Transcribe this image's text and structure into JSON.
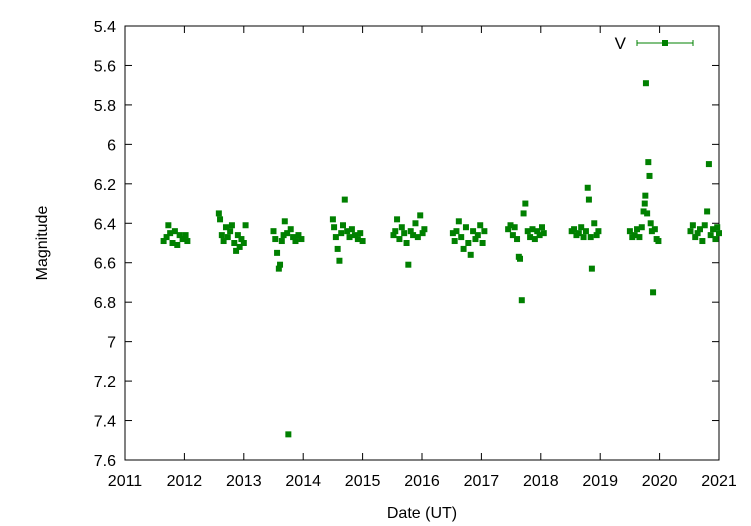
{
  "chart_data": {
    "type": "scatter",
    "title": "",
    "xlabel": "Date (UT)",
    "ylabel": "Magnitude",
    "xlim": [
      2011,
      2021
    ],
    "ylim": [
      7.6,
      5.4
    ],
    "y_inverted": true,
    "grid": false,
    "legend_position": "top-right",
    "x_ticks": [
      "2011",
      "2012",
      "2013",
      "2014",
      "2015",
      "2016",
      "2017",
      "2018",
      "2019",
      "2020",
      "2021"
    ],
    "y_ticks": [
      "5.4",
      "5.6",
      "5.8",
      "6",
      "6.2",
      "6.4",
      "6.6",
      "6.8",
      "7",
      "7.2",
      "7.4",
      "7.6"
    ],
    "series": [
      {
        "name": "V",
        "color": "#008000",
        "marker": "square",
        "points": [
          [
            2011.65,
            6.49
          ],
          [
            2011.7,
            6.47
          ],
          [
            2011.73,
            6.41
          ],
          [
            2011.76,
            6.45
          ],
          [
            2011.8,
            6.5
          ],
          [
            2011.84,
            6.44
          ],
          [
            2011.88,
            6.51
          ],
          [
            2011.92,
            6.46
          ],
          [
            2011.97,
            6.48
          ],
          [
            2012.02,
            6.46
          ],
          [
            2012.05,
            6.49
          ],
          [
            2012.58,
            6.35
          ],
          [
            2012.6,
            6.38
          ],
          [
            2012.63,
            6.46
          ],
          [
            2012.66,
            6.49
          ],
          [
            2012.7,
            6.42
          ],
          [
            2012.73,
            6.47
          ],
          [
            2012.77,
            6.44
          ],
          [
            2012.8,
            6.41
          ],
          [
            2012.84,
            6.5
          ],
          [
            2012.87,
            6.54
          ],
          [
            2012.9,
            6.46
          ],
          [
            2012.93,
            6.52
          ],
          [
            2012.96,
            6.48
          ],
          [
            2013.0,
            6.5
          ],
          [
            2013.03,
            6.41
          ],
          [
            2013.5,
            6.44
          ],
          [
            2013.53,
            6.48
          ],
          [
            2013.56,
            6.55
          ],
          [
            2013.59,
            6.63
          ],
          [
            2013.61,
            6.61
          ],
          [
            2013.64,
            6.49
          ],
          [
            2013.67,
            6.46
          ],
          [
            2013.69,
            6.39
          ],
          [
            2013.73,
            6.45
          ],
          [
            2013.75,
            7.47
          ],
          [
            2013.79,
            6.43
          ],
          [
            2013.83,
            6.47
          ],
          [
            2013.87,
            6.49
          ],
          [
            2013.92,
            6.46
          ],
          [
            2013.97,
            6.48
          ],
          [
            2014.5,
            6.38
          ],
          [
            2014.52,
            6.42
          ],
          [
            2014.55,
            6.47
          ],
          [
            2014.58,
            6.53
          ],
          [
            2014.61,
            6.59
          ],
          [
            2014.64,
            6.45
          ],
          [
            2014.67,
            6.41
          ],
          [
            2014.7,
            6.28
          ],
          [
            2014.74,
            6.44
          ],
          [
            2014.78,
            6.47
          ],
          [
            2014.82,
            6.43
          ],
          [
            2014.87,
            6.46
          ],
          [
            2014.92,
            6.48
          ],
          [
            2014.96,
            6.45
          ],
          [
            2015.0,
            6.49
          ],
          [
            2015.52,
            6.46
          ],
          [
            2015.55,
            6.44
          ],
          [
            2015.58,
            6.38
          ],
          [
            2015.62,
            6.48
          ],
          [
            2015.66,
            6.42
          ],
          [
            2015.7,
            6.45
          ],
          [
            2015.74,
            6.5
          ],
          [
            2015.77,
            6.61
          ],
          [
            2015.81,
            6.44
          ],
          [
            2015.85,
            6.46
          ],
          [
            2015.89,
            6.4
          ],
          [
            2015.93,
            6.47
          ],
          [
            2015.97,
            6.36
          ],
          [
            2016.01,
            6.45
          ],
          [
            2016.04,
            6.43
          ],
          [
            2016.52,
            6.45
          ],
          [
            2016.55,
            6.49
          ],
          [
            2016.58,
            6.44
          ],
          [
            2016.62,
            6.39
          ],
          [
            2016.66,
            6.47
          ],
          [
            2016.7,
            6.53
          ],
          [
            2016.74,
            6.42
          ],
          [
            2016.78,
            6.5
          ],
          [
            2016.82,
            6.56
          ],
          [
            2016.86,
            6.44
          ],
          [
            2016.9,
            6.48
          ],
          [
            2016.94,
            6.46
          ],
          [
            2016.98,
            6.41
          ],
          [
            2017.02,
            6.5
          ],
          [
            2017.05,
            6.44
          ],
          [
            2017.45,
            6.43
          ],
          [
            2017.49,
            6.41
          ],
          [
            2017.53,
            6.46
          ],
          [
            2017.56,
            6.42
          ],
          [
            2017.6,
            6.48
          ],
          [
            2017.63,
            6.57
          ],
          [
            2017.65,
            6.58
          ],
          [
            2017.68,
            6.79
          ],
          [
            2017.71,
            6.35
          ],
          [
            2017.74,
            6.3
          ],
          [
            2017.78,
            6.44
          ],
          [
            2017.82,
            6.47
          ],
          [
            2017.86,
            6.43
          ],
          [
            2017.9,
            6.48
          ],
          [
            2017.94,
            6.44
          ],
          [
            2017.98,
            6.46
          ],
          [
            2018.02,
            6.42
          ],
          [
            2018.05,
            6.45
          ],
          [
            2018.52,
            6.44
          ],
          [
            2018.56,
            6.43
          ],
          [
            2018.6,
            6.46
          ],
          [
            2018.64,
            6.45
          ],
          [
            2018.68,
            6.42
          ],
          [
            2018.72,
            6.47
          ],
          [
            2018.76,
            6.44
          ],
          [
            2018.79,
            6.22
          ],
          [
            2018.81,
            6.28
          ],
          [
            2018.84,
            6.47
          ],
          [
            2018.86,
            6.63
          ],
          [
            2018.9,
            6.4
          ],
          [
            2018.94,
            6.46
          ],
          [
            2018.97,
            6.44
          ],
          [
            2019.5,
            6.44
          ],
          [
            2019.54,
            6.47
          ],
          [
            2019.58,
            6.46
          ],
          [
            2019.62,
            6.43
          ],
          [
            2019.66,
            6.47
          ],
          [
            2019.7,
            6.42
          ],
          [
            2019.73,
            6.34
          ],
          [
            2019.75,
            6.3
          ],
          [
            2019.76,
            6.26
          ],
          [
            2019.77,
            5.69
          ],
          [
            2019.79,
            6.35
          ],
          [
            2019.81,
            6.09
          ],
          [
            2019.83,
            6.16
          ],
          [
            2019.85,
            6.4
          ],
          [
            2019.87,
            6.44
          ],
          [
            2019.89,
            6.75
          ],
          [
            2019.92,
            6.43
          ],
          [
            2019.95,
            6.48
          ],
          [
            2019.98,
            6.49
          ],
          [
            2020.52,
            6.44
          ],
          [
            2020.56,
            6.41
          ],
          [
            2020.6,
            6.47
          ],
          [
            2020.64,
            6.45
          ],
          [
            2020.68,
            6.43
          ],
          [
            2020.72,
            6.49
          ],
          [
            2020.76,
            6.41
          ],
          [
            2020.8,
            6.34
          ],
          [
            2020.83,
            6.1
          ],
          [
            2020.86,
            6.46
          ],
          [
            2020.9,
            6.43
          ],
          [
            2020.94,
            6.48
          ],
          [
            2020.97,
            6.42
          ],
          [
            2021.0,
            6.45
          ]
        ]
      }
    ]
  }
}
